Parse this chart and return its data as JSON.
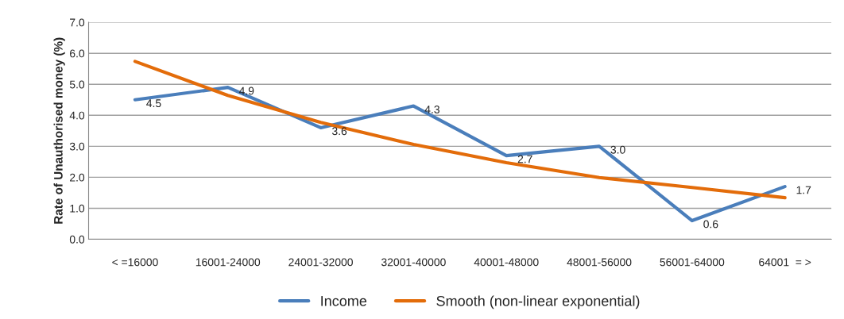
{
  "chart_data": {
    "type": "line",
    "ylabel": "Rate of Unauthorised money (%)",
    "categories": [
      "< =16000",
      "16001-24000",
      "24001-32000",
      "32001-40000",
      "40001-48000",
      "48001-56000",
      "56001-64000",
      "64001  = >"
    ],
    "series": [
      {
        "name": "Income",
        "color": "#4a7ebb",
        "values": [
          4.5,
          4.9,
          3.6,
          4.3,
          2.7,
          3.0,
          0.6,
          1.7
        ],
        "value_labels": [
          "4.5",
          "4.9",
          "3.6",
          "4.3",
          "2.7",
          "3.0",
          "0.6",
          "1.7"
        ]
      },
      {
        "name": "Smooth (non-linear exponential)",
        "color": "#e36c0a",
        "values": [
          5.74,
          4.64,
          3.77,
          3.06,
          2.47,
          1.99,
          1.67,
          1.34
        ]
      }
    ],
    "ylim": [
      0,
      7
    ],
    "yticks": [
      "0.0",
      "1.0",
      "2.0",
      "3.0",
      "4.0",
      "5.0",
      "6.0",
      "7.0"
    ],
    "grid": "y",
    "legend": "bottom",
    "marker": "none",
    "line_style": "solid"
  }
}
